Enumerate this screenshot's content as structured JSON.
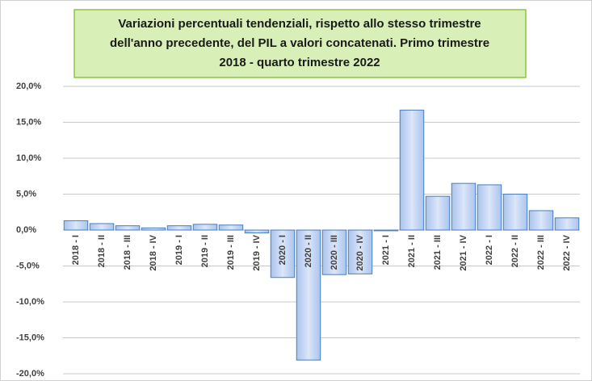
{
  "chart_data": {
    "type": "bar",
    "title": [
      "Variazioni percentuali tendenziali, rispetto allo stesso trimestre",
      "dell'anno precedente, del PIL a valori concatenati. Primo trimestre",
      "2018 - quarto trimestre 2022"
    ],
    "categories": [
      "2018 - I",
      "2018 - II",
      "2018 - III",
      "2018 - IV",
      "2019 - I",
      "2019 - II",
      "2019 - III",
      "2019 - IV",
      "2020 - I",
      "2020 - II",
      "2020 - III",
      "2020 - IV",
      "2021 - I",
      "2021 - II",
      "2021 - III",
      "2021 - IV",
      "2022 - I",
      "2022 - II",
      "2022 - III",
      "2022 - IV"
    ],
    "values": [
      1.3,
      0.9,
      0.6,
      0.3,
      0.6,
      0.8,
      0.7,
      -0.4,
      -6.6,
      -18.1,
      -6.2,
      -6.1,
      -0.1,
      16.7,
      4.7,
      6.5,
      6.3,
      5.0,
      2.7,
      1.7
    ],
    "color": "#4a7ebb",
    "ylim": [
      -20,
      20
    ],
    "yticks": [
      {
        "value": -20,
        "label": "-20,0%"
      },
      {
        "value": -15,
        "label": "-15,0%"
      },
      {
        "value": -10,
        "label": "-10,0%"
      },
      {
        "value": -5,
        "label": "-5,0%"
      },
      {
        "value": 0,
        "label": "0,0%"
      },
      {
        "value": 5,
        "label": "5,0%"
      },
      {
        "value": 10,
        "label": "10,0%"
      },
      {
        "value": 15,
        "label": "15,0%"
      },
      {
        "value": 20,
        "label": "20,0%"
      }
    ],
    "grid": true
  }
}
